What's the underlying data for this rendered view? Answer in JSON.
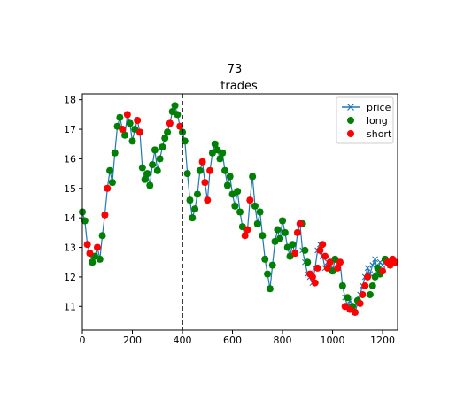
{
  "chart_data": {
    "type": "scatter",
    "suptitle": "73",
    "title": "trades",
    "xlabel": "",
    "ylabel": "",
    "xlim": [
      0,
      1260
    ],
    "ylim": [
      10.2,
      18.2
    ],
    "xticks": [
      0,
      200,
      400,
      600,
      800,
      1000,
      1200
    ],
    "yticks": [
      11,
      12,
      13,
      14,
      15,
      16,
      17,
      18
    ],
    "grid": false,
    "legend_position": "top-right",
    "vline": {
      "x": 400,
      "style": "dashed",
      "color": "#000000"
    },
    "colors": {
      "price": "#1f77b4",
      "long": "#008000",
      "short": "#ff0000"
    },
    "series": [
      {
        "name": "price",
        "kind": "line-x-markers",
        "x": [
          0,
          10,
          20,
          30,
          40,
          50,
          60,
          70,
          80,
          90,
          100,
          110,
          120,
          130,
          140,
          150,
          160,
          170,
          180,
          190,
          200,
          210,
          220,
          230,
          240,
          250,
          260,
          270,
          280,
          290,
          300,
          310,
          320,
          330,
          340,
          350,
          360,
          370,
          380,
          390,
          400,
          410,
          420,
          430,
          440,
          450,
          460,
          470,
          480,
          490,
          500,
          510,
          520,
          530,
          540,
          550,
          560,
          570,
          580,
          590,
          600,
          610,
          620,
          630,
          640,
          650,
          660,
          670,
          680,
          690,
          700,
          710,
          720,
          730,
          740,
          750,
          760,
          770,
          780,
          790,
          800,
          810,
          820,
          830,
          840,
          850,
          860,
          870,
          880,
          890,
          900,
          910,
          920,
          930,
          940,
          950,
          960,
          970,
          980,
          990,
          1000,
          1010,
          1020,
          1030,
          1040,
          1050,
          1060,
          1070,
          1080,
          1090,
          1100,
          1110,
          1120,
          1130,
          1140,
          1150,
          1160,
          1170,
          1180,
          1190,
          1200,
          1210,
          1220,
          1230,
          1240,
          1250
        ],
        "y": [
          14.2,
          13.9,
          13.1,
          12.8,
          12.5,
          12.7,
          13.0,
          12.6,
          13.4,
          14.1,
          15.0,
          15.6,
          15.2,
          16.2,
          17.1,
          17.4,
          17.0,
          16.8,
          17.5,
          17.2,
          16.6,
          17.0,
          17.3,
          16.9,
          15.7,
          15.3,
          15.5,
          15.1,
          15.8,
          16.3,
          15.6,
          16.0,
          16.4,
          16.7,
          16.9,
          17.2,
          17.6,
          17.8,
          17.5,
          17.1,
          16.9,
          16.6,
          15.5,
          14.6,
          14.0,
          14.3,
          14.8,
          15.6,
          15.9,
          15.2,
          14.6,
          15.6,
          16.2,
          16.5,
          16.3,
          16.0,
          16.2,
          15.6,
          15.1,
          15.4,
          14.8,
          14.4,
          14.9,
          14.2,
          13.7,
          13.4,
          13.6,
          14.6,
          15.4,
          14.4,
          13.8,
          14.2,
          13.4,
          12.6,
          12.1,
          11.6,
          12.4,
          13.2,
          13.6,
          13.3,
          13.9,
          13.5,
          13.0,
          12.7,
          13.1,
          12.8,
          13.5,
          13.8,
          12.9,
          12.5,
          12.1,
          12.0,
          11.8,
          12.3,
          12.9,
          13.1,
          12.7,
          12.3,
          12.5,
          12.4,
          12.2,
          12.6,
          12.3,
          12.5,
          11.7,
          11.3,
          11.0,
          11.2,
          10.9,
          10.8,
          11.1,
          11.4,
          11.7,
          12.0,
          12.3,
          12.1,
          12.4,
          12.6,
          12.2,
          12.5,
          12.4,
          12.6,
          12.5,
          12.4,
          12.6,
          12.5
        ]
      },
      {
        "name": "long",
        "kind": "markers",
        "x": [
          0,
          10,
          40,
          50,
          70,
          80,
          110,
          120,
          130,
          140,
          150,
          170,
          190,
          200,
          210,
          240,
          250,
          260,
          270,
          280,
          290,
          300,
          310,
          320,
          330,
          340,
          360,
          370,
          380,
          400,
          410,
          420,
          430,
          440,
          450,
          460,
          470,
          520,
          530,
          540,
          550,
          560,
          570,
          580,
          590,
          600,
          610,
          620,
          630,
          640,
          680,
          690,
          700,
          710,
          720,
          730,
          740,
          750,
          760,
          770,
          780,
          790,
          800,
          810,
          820,
          830,
          840,
          880,
          890,
          900,
          1000,
          1010,
          1040,
          1060,
          1080,
          1100,
          1150,
          1160,
          1170,
          1180,
          1190,
          1210
        ],
        "y": [
          14.2,
          13.9,
          12.5,
          12.7,
          12.6,
          13.4,
          15.6,
          15.2,
          16.2,
          17.1,
          17.4,
          16.8,
          17.2,
          16.6,
          17.0,
          15.7,
          15.3,
          15.5,
          15.1,
          15.8,
          16.3,
          15.6,
          16.0,
          16.4,
          16.7,
          16.9,
          17.6,
          17.8,
          17.5,
          16.9,
          16.6,
          15.5,
          14.6,
          14.0,
          14.3,
          14.8,
          15.6,
          16.2,
          16.5,
          16.3,
          16.0,
          16.2,
          15.6,
          15.1,
          15.4,
          14.8,
          14.4,
          14.9,
          14.2,
          13.7,
          15.4,
          14.4,
          13.8,
          14.2,
          13.4,
          12.6,
          12.1,
          11.6,
          12.4,
          13.2,
          13.6,
          13.3,
          13.9,
          13.5,
          13.0,
          12.7,
          13.1,
          13.8,
          12.9,
          12.5,
          12.2,
          12.6,
          11.7,
          11.3,
          11.0,
          11.2,
          11.4,
          11.7,
          12.0,
          12.3,
          12.1,
          12.6
        ]
      },
      {
        "name": "short",
        "kind": "markers",
        "x": [
          20,
          30,
          60,
          90,
          100,
          160,
          180,
          220,
          230,
          350,
          390,
          480,
          490,
          500,
          510,
          650,
          660,
          670,
          850,
          860,
          870,
          910,
          920,
          930,
          940,
          950,
          960,
          970,
          980,
          990,
          1020,
          1030,
          1050,
          1070,
          1090,
          1110,
          1120,
          1130,
          1140,
          1200,
          1220,
          1230,
          1240,
          1250
        ],
        "y": [
          13.1,
          12.8,
          13.0,
          14.1,
          15.0,
          17.0,
          17.5,
          17.3,
          16.9,
          17.2,
          17.1,
          15.9,
          15.2,
          14.6,
          15.6,
          13.4,
          13.6,
          14.6,
          12.8,
          13.5,
          13.8,
          12.1,
          12.0,
          11.8,
          12.3,
          12.9,
          13.1,
          12.7,
          12.3,
          12.5,
          12.3,
          12.5,
          11.0,
          10.9,
          10.8,
          11.1,
          11.4,
          11.7,
          12.0,
          12.2,
          12.5,
          12.4,
          12.6,
          12.5
        ]
      }
    ]
  }
}
